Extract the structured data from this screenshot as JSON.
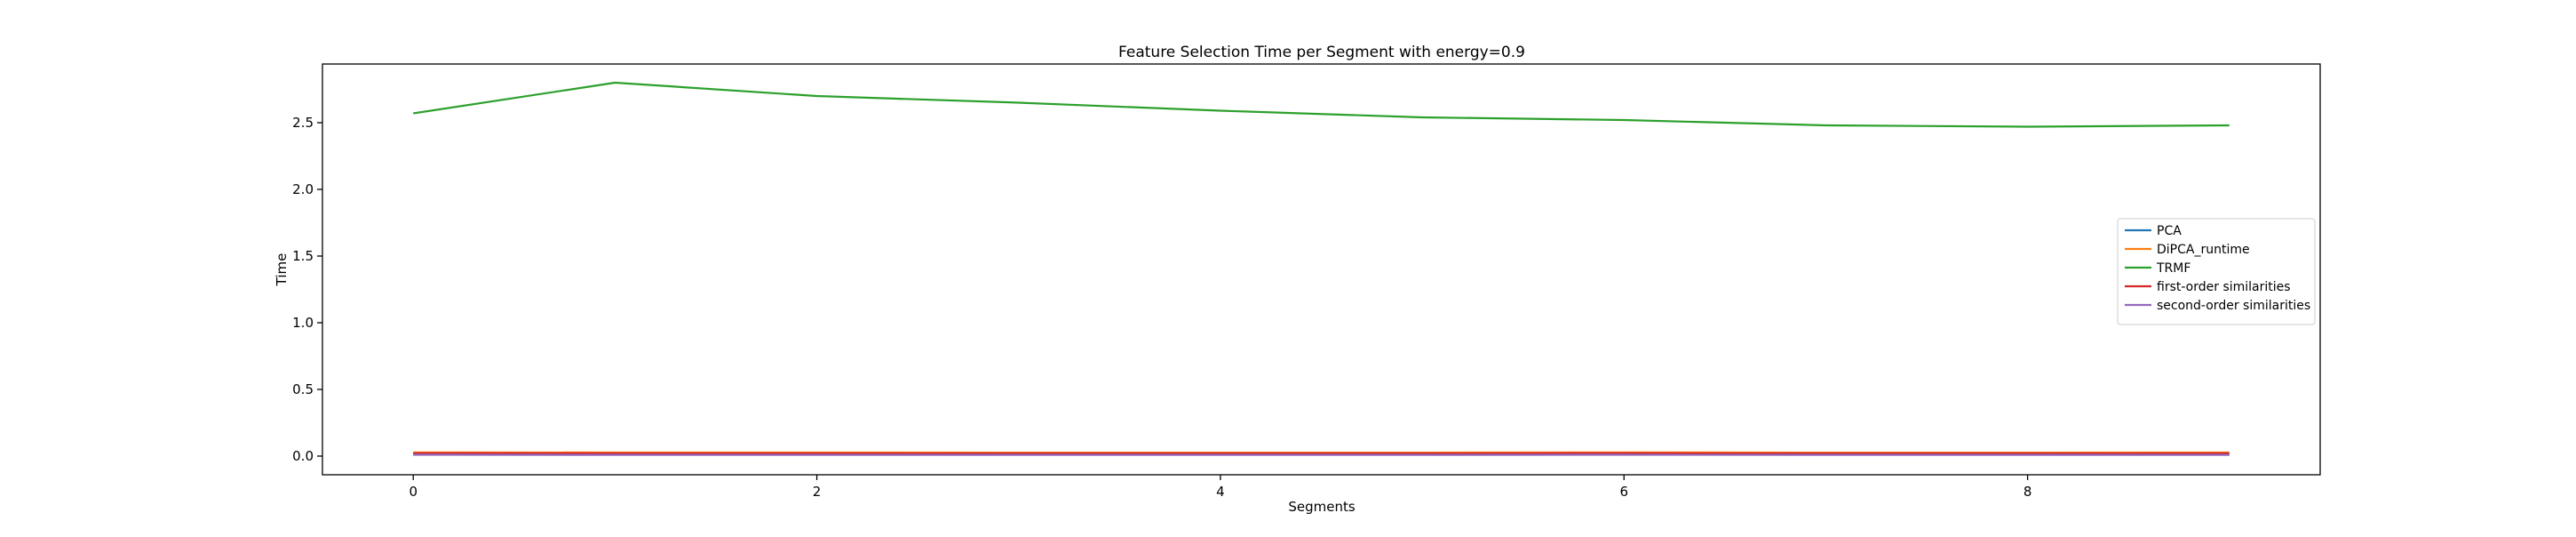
{
  "chart_data": {
    "type": "line",
    "title": "Feature Selection Time per Segment with energy=0.9",
    "xlabel": "Segments",
    "ylabel": "Time",
    "xlim": [
      -0.45,
      9.45
    ],
    "ylim": [
      -0.14,
      2.94
    ],
    "x_ticks": [
      0,
      2,
      4,
      6,
      8
    ],
    "y_ticks": [
      0.0,
      0.5,
      1.0,
      1.5,
      2.0,
      2.5
    ],
    "grid": false,
    "legend_position": "center-right",
    "x": [
      0,
      1,
      2,
      3,
      4,
      5,
      6,
      7,
      8,
      9
    ],
    "series": [
      {
        "name": "PCA",
        "color": "#1f77b4",
        "values": [
          0.015,
          0.014,
          0.014,
          0.013,
          0.013,
          0.013,
          0.014,
          0.013,
          0.013,
          0.013
        ]
      },
      {
        "name": "DiPCA_runtime",
        "color": "#ff7f0e",
        "values": [
          0.028,
          0.027,
          0.027,
          0.026,
          0.026,
          0.026,
          0.028,
          0.026,
          0.026,
          0.027
        ]
      },
      {
        "name": "TRMF",
        "color": "#2ca02c",
        "values": [
          2.57,
          2.8,
          2.7,
          2.65,
          2.59,
          2.54,
          2.52,
          2.48,
          2.47,
          2.48
        ]
      },
      {
        "name": "first-order similarities",
        "color": "#d62728",
        "values": [
          0.022,
          0.021,
          0.021,
          0.02,
          0.02,
          0.02,
          0.022,
          0.02,
          0.02,
          0.021
        ]
      },
      {
        "name": "second-order similarities",
        "color": "#9467bd",
        "values": [
          0.01,
          0.009,
          0.009,
          0.009,
          0.009,
          0.009,
          0.01,
          0.009,
          0.009,
          0.009
        ]
      }
    ]
  }
}
